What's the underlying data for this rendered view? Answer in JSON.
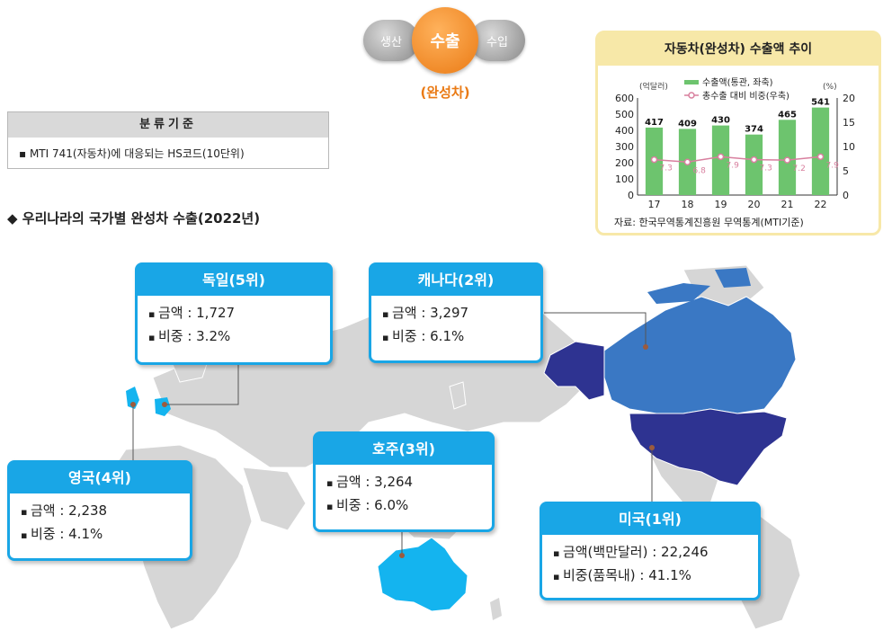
{
  "header": {
    "left_pill": "생산",
    "main_pill": "수출",
    "right_pill": "수입",
    "sub_label": "(완성차)"
  },
  "classification": {
    "title": "분류기준",
    "item": "MTI 741(자동차)에 대응되는 HS코드(10단위)"
  },
  "section_title": "우리나라의 국가별 완성차 수출(2022년)",
  "chart": {
    "title": "자동차(완성차) 수출액 추이",
    "left_unit": "(억달러)",
    "right_unit": "(%)",
    "source": "자료: 한국무역통계진흥원 무역통계(MTI기준)",
    "legend_bar": "수출액(통관, 좌축)",
    "legend_line": "총수출 대비 비중(우축)"
  },
  "chart_data": {
    "type": "bar",
    "title": "자동차(완성차) 수출액 추이",
    "categories": [
      "17",
      "18",
      "19",
      "20",
      "21",
      "22"
    ],
    "series": [
      {
        "name": "수출액(통관, 좌축)",
        "type": "bar",
        "axis": "left",
        "values": [
          417,
          409,
          430,
          374,
          465,
          541
        ]
      },
      {
        "name": "총수출 대비 비중(우축)",
        "type": "line",
        "axis": "right",
        "values": [
          7.3,
          6.8,
          7.9,
          7.3,
          7.2,
          7.9
        ]
      }
    ],
    "ylim_left": [
      0,
      600
    ],
    "yticks_left": [
      0,
      100,
      200,
      300,
      400,
      500,
      600
    ],
    "ylim_right": [
      0,
      20
    ],
    "yticks_right": [
      0,
      5,
      10,
      15,
      20
    ],
    "bar_color": "#6dc46e",
    "line_color": "#d87f9e"
  },
  "countries": {
    "germany": {
      "name": "독일(5위)",
      "amount": "금액 : 1,727",
      "share": "비중 : 3.2%"
    },
    "canada": {
      "name": "캐나다(2위)",
      "amount": "금액 : 3,297",
      "share": "비중 : 6.1%"
    },
    "uk": {
      "name": "영국(4위)",
      "amount": "금액 : 2,238",
      "share": "비중 : 4.1%"
    },
    "australia": {
      "name": "호주(3위)",
      "amount": "금액 : 3,264",
      "share": "비중 : 6.0%"
    },
    "usa": {
      "name": "미국(1위)",
      "amount": "금액(백만달러) : 22,246",
      "share": "비중(품목내) : 41.1%"
    }
  },
  "colors": {
    "accent_blue": "#19a6e6",
    "orange": "#ea7a14",
    "usa_fill": "#2e3391",
    "canada_fill": "#3a78c4",
    "highlight_fill": "#14b4ef",
    "land_fill": "#d6d6d6"
  }
}
